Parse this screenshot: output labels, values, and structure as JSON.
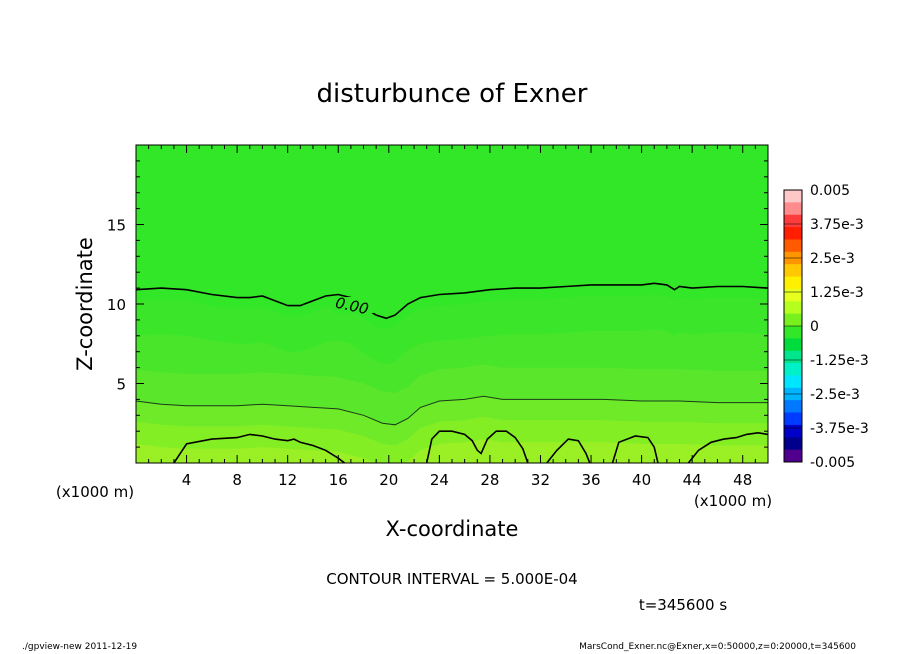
{
  "chart_data": {
    "type": "heatmap",
    "title": "disturbunce of Exner",
    "xlabel": "X-coordinate",
    "ylabel": "Z-coordinate",
    "x_unit": "(x1000 m)",
    "y_unit": "(x1000 m)",
    "xlim": [
      0,
      50
    ],
    "ylim": [
      0,
      20
    ],
    "x_ticks": [
      4,
      8,
      12,
      16,
      20,
      24,
      28,
      32,
      36,
      40,
      44,
      48
    ],
    "y_ticks": [
      5,
      10,
      15
    ],
    "contour_interval_text": "CONTOUR INTERVAL = 5.000E-04",
    "time_text": "t=345600 s",
    "contour_label": "0.00",
    "colorbar": {
      "labels": [
        "0.005",
        "3.75e-3",
        "2.5e-3",
        "1.25e-3",
        "0",
        "-1.25e-3",
        "-2.5e-3",
        "-3.75e-3",
        "-0.005"
      ],
      "colors": [
        "#ffc8c8",
        "#ff8c8c",
        "#ff3c3c",
        "#ff1e00",
        "#ff5a00",
        "#ff9600",
        "#ffc800",
        "#fff000",
        "#e6ff1e",
        "#b4ff1e",
        "#78f01e",
        "#32e628",
        "#00dc3c",
        "#00e68c",
        "#00f0c8",
        "#00e6ff",
        "#00b4ff",
        "#0078ff",
        "#003cff",
        "#0000c8",
        "#00008c",
        "#50008c"
      ]
    },
    "bands": [
      {
        "name": "above-zero-contour",
        "color": "#32e628"
      },
      {
        "name": "band-1",
        "color": "#3be62a"
      },
      {
        "name": "band-2",
        "color": "#48e52a"
      },
      {
        "name": "band-3",
        "color": "#5ae62a"
      },
      {
        "name": "band-4",
        "color": "#6eea28"
      },
      {
        "name": "band-5",
        "color": "#84ee24"
      },
      {
        "name": "band-6",
        "color": "#9af024"
      }
    ],
    "zero_contour": [
      [
        0,
        10.9
      ],
      [
        2,
        11.0
      ],
      [
        4,
        10.9
      ],
      [
        6,
        10.6
      ],
      [
        8,
        10.4
      ],
      [
        9,
        10.4
      ],
      [
        10,
        10.5
      ],
      [
        11,
        10.2
      ],
      [
        12,
        9.9
      ],
      [
        13,
        9.9
      ],
      [
        14,
        10.2
      ],
      [
        15,
        10.5
      ],
      [
        16,
        10.6
      ],
      [
        17,
        10.4
      ],
      [
        18,
        9.8
      ],
      [
        19,
        9.3
      ],
      [
        19.8,
        9.1
      ],
      [
        20.5,
        9.3
      ],
      [
        21.5,
        10.0
      ],
      [
        22.5,
        10.4
      ],
      [
        24,
        10.6
      ],
      [
        26,
        10.7
      ],
      [
        28,
        10.9
      ],
      [
        30,
        11.0
      ],
      [
        32,
        11.0
      ],
      [
        34,
        11.1
      ],
      [
        36,
        11.2
      ],
      [
        38,
        11.2
      ],
      [
        40,
        11.2
      ],
      [
        41,
        11.3
      ],
      [
        42,
        11.2
      ],
      [
        42.6,
        10.9
      ],
      [
        43,
        11.1
      ],
      [
        44,
        11.0
      ],
      [
        46,
        11.1
      ],
      [
        48,
        11.1
      ],
      [
        50,
        11.0
      ]
    ],
    "mid_contour": [
      [
        0,
        3.9
      ],
      [
        2,
        3.7
      ],
      [
        4,
        3.6
      ],
      [
        6,
        3.6
      ],
      [
        8,
        3.6
      ],
      [
        10,
        3.7
      ],
      [
        12,
        3.6
      ],
      [
        14,
        3.5
      ],
      [
        16,
        3.4
      ],
      [
        18,
        3.0
      ],
      [
        19.5,
        2.5
      ],
      [
        20.5,
        2.4
      ],
      [
        21.5,
        2.8
      ],
      [
        22.5,
        3.5
      ],
      [
        24,
        3.9
      ],
      [
        26,
        4.0
      ],
      [
        27.5,
        4.2
      ],
      [
        29,
        4.0
      ],
      [
        31,
        4.0
      ],
      [
        34,
        4.0
      ],
      [
        37,
        4.0
      ],
      [
        40,
        3.9
      ],
      [
        43,
        3.9
      ],
      [
        46,
        3.8
      ],
      [
        50,
        3.8
      ]
    ],
    "low_contours": [
      [
        [
          3,
          0
        ],
        [
          4,
          1.2
        ],
        [
          6,
          1.5
        ],
        [
          8,
          1.6
        ],
        [
          9,
          1.8
        ],
        [
          10,
          1.7
        ],
        [
          11,
          1.5
        ],
        [
          12,
          1.4
        ],
        [
          12.5,
          1.5
        ],
        [
          13,
          1.3
        ],
        [
          14,
          1.1
        ],
        [
          15,
          0.8
        ],
        [
          16,
          0.3
        ],
        [
          16.5,
          0
        ]
      ],
      [
        [
          23,
          0
        ],
        [
          23.4,
          1.5
        ],
        [
          24,
          2.0
        ],
        [
          25,
          2.0
        ],
        [
          26,
          1.8
        ],
        [
          26.6,
          1.4
        ],
        [
          27,
          0.8
        ],
        [
          27.3,
          0.6
        ],
        [
          27.8,
          1.5
        ],
        [
          28.5,
          2.0
        ],
        [
          29.3,
          2.0
        ],
        [
          30,
          1.6
        ],
        [
          30.6,
          0.9
        ],
        [
          31,
          0
        ]
      ],
      [
        [
          32.5,
          0
        ],
        [
          33.3,
          0.8
        ],
        [
          34.2,
          1.5
        ],
        [
          35,
          1.4
        ],
        [
          35.6,
          0.6
        ],
        [
          35.9,
          0
        ]
      ],
      [
        [
          37.7,
          0
        ],
        [
          38.2,
          1.3
        ],
        [
          39.5,
          1.7
        ],
        [
          40.5,
          1.6
        ],
        [
          41,
          1.0
        ],
        [
          41.3,
          0
        ]
      ],
      [
        [
          43.7,
          0
        ],
        [
          44.5,
          0.8
        ],
        [
          45.5,
          1.3
        ],
        [
          46.5,
          1.5
        ],
        [
          47.5,
          1.6
        ],
        [
          48.3,
          1.8
        ],
        [
          49.2,
          1.9
        ],
        [
          50,
          1.8
        ]
      ]
    ]
  },
  "footer": {
    "left": "./gpview-new   2011-12-19",
    "right": "MarsCond_Exner.nc@Exner,x=0:50000,z=0:20000,t=345600"
  }
}
